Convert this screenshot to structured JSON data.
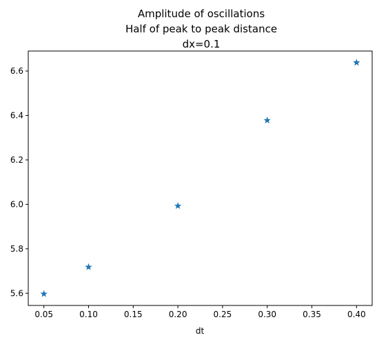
{
  "chart_data": {
    "type": "scatter",
    "title_lines": [
      "Amplitude of oscillations",
      "Half of peak to peak distance",
      "dx=0.1"
    ],
    "xlabel": "dt",
    "ylabel": "",
    "x": [
      0.05,
      0.1,
      0.2,
      0.3,
      0.4
    ],
    "y": [
      5.597,
      5.718,
      5.993,
      6.378,
      6.638
    ],
    "xlim": [
      0.0325,
      0.4175
    ],
    "ylim": [
      5.545,
      6.69
    ],
    "x_ticks": [
      0.05,
      0.1,
      0.15,
      0.2,
      0.25,
      0.3,
      0.35,
      0.4
    ],
    "x_tick_labels": [
      "0.05",
      "0.10",
      "0.15",
      "0.20",
      "0.25",
      "0.30",
      "0.35",
      "0.40"
    ],
    "y_ticks": [
      5.6,
      5.8,
      6.0,
      6.2,
      6.4,
      6.6
    ],
    "y_tick_labels": [
      "5.6",
      "5.8",
      "6.0",
      "6.2",
      "6.4",
      "6.6"
    ],
    "marker": "star",
    "marker_color": "#1f77b4",
    "grid": false,
    "legend": "none"
  }
}
